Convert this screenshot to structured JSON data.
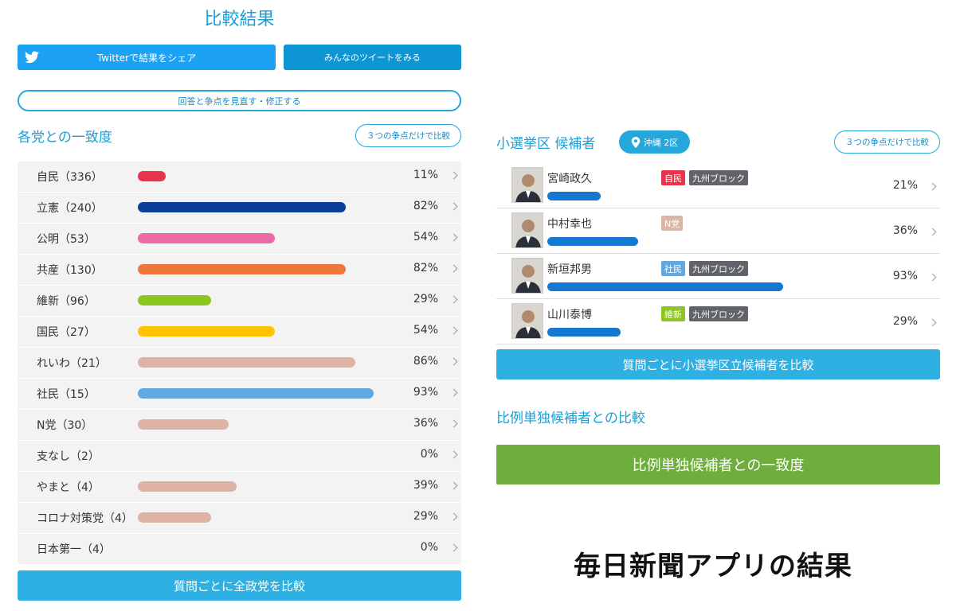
{
  "page": {
    "title": "比較結果"
  },
  "share": {
    "twitter_label": "Twitterで結果をシェア",
    "tweets_label": "みんなのツイートをみる",
    "review_label": "回答と争点を見直す・修正する"
  },
  "parties_section": {
    "title": "各党との一致度",
    "filter_label": "３つの争点だけで比較",
    "parties": [
      {
        "name": "自民（336）",
        "percent_text": "11%",
        "percent": 11,
        "color": "#e8334a"
      },
      {
        "name": "立憲（240）",
        "percent_text": "82%",
        "percent": 82,
        "color": "#0b3f9a"
      },
      {
        "name": "公明（53）",
        "percent_text": "54%",
        "percent": 54,
        "color": "#ec6aa8"
      },
      {
        "name": "共産（130）",
        "percent_text": "82%",
        "percent": 82,
        "color": "#f0773b"
      },
      {
        "name": "維新（96）",
        "percent_text": "29%",
        "percent": 29,
        "color": "#8cc420"
      },
      {
        "name": "国民（27）",
        "percent_text": "54%",
        "percent": 54,
        "color": "#ffc400"
      },
      {
        "name": "れいわ（21）",
        "percent_text": "86%",
        "percent": 86,
        "color": "#dcb3a5"
      },
      {
        "name": "社民（15）",
        "percent_text": "93%",
        "percent": 93,
        "color": "#63a8de"
      },
      {
        "name": "N党（30）",
        "percent_text": "36%",
        "percent": 36,
        "color": "#dcb3a5"
      },
      {
        "name": "支なし（2）",
        "percent_text": "0%",
        "percent": 0,
        "color": "#dcb3a5"
      },
      {
        "name": "やまと（4）",
        "percent_text": "39%",
        "percent": 39,
        "color": "#dcb3a5"
      },
      {
        "name": "コロナ対策党（4）",
        "percent_text": "29%",
        "percent": 29,
        "color": "#dcb3a5"
      },
      {
        "name": "日本第一（4）",
        "percent_text": "0%",
        "percent": 0,
        "color": "#dcb3a5"
      }
    ],
    "compare_button": "質問ごとに全政党を比較"
  },
  "district_section": {
    "title": "小選挙区 候補者",
    "district": "沖縄 2区",
    "filter_label": "３つの争点だけで比較",
    "candidates": [
      {
        "name": "宮崎政久",
        "party": "自民",
        "party_color": "#e8334a",
        "block": "九州ブロック",
        "percent_text": "21%",
        "percent": 21
      },
      {
        "name": "中村幸也",
        "party": "N党",
        "party_color": "#dcb3a5",
        "block": "",
        "percent_text": "36%",
        "percent": 36
      },
      {
        "name": "新垣邦男",
        "party": "社民",
        "party_color": "#63a8de",
        "block": "九州ブロック",
        "percent_text": "93%",
        "percent": 93
      },
      {
        "name": "山川泰博",
        "party": "維新",
        "party_color": "#8cc420",
        "block": "九州ブロック",
        "percent_text": "29%",
        "percent": 29
      }
    ],
    "compare_button": "質問ごとに小選挙区立候補者を比較"
  },
  "proportional_section": {
    "title": "比例単独候補者との比較",
    "button": "比例単独候補者との一致度"
  },
  "caption": "毎日新聞アプリの結果"
}
